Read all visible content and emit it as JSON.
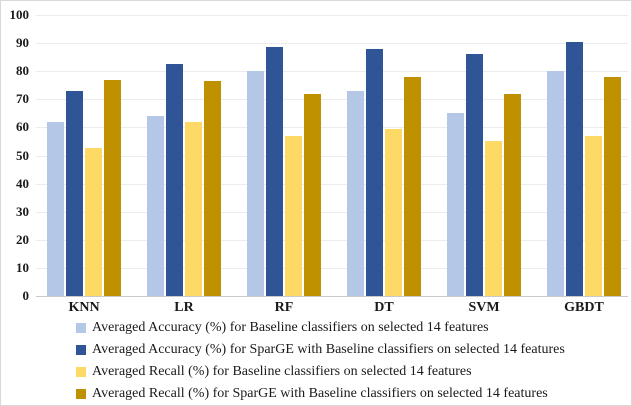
{
  "figure": {
    "background": "#ffffff",
    "border_color": "#d9d9d9",
    "gridline_color": "#ececec",
    "axis_line_color": "#c9c9c9",
    "tick_label_color": "#1a1a1a"
  },
  "chart_data": {
    "type": "bar",
    "title": "",
    "xlabel": "",
    "ylabel": "",
    "ylim": [
      0,
      100
    ],
    "yticks": [
      0,
      10,
      20,
      30,
      40,
      50,
      60,
      70,
      80,
      90,
      100
    ],
    "grid": true,
    "legend_position": "bottom-left",
    "categories": [
      "KNN",
      "LR",
      "RF",
      "DT",
      "SVM",
      "GBDT"
    ],
    "series": [
      {
        "name": "Averaged Accuracy (%) for Baseline classifiers on selected 14 features",
        "color": "#b4c7e7",
        "values": [
          62,
          64,
          80,
          73,
          65,
          80
        ]
      },
      {
        "name": "Averaged Accuracy (%) for SparGE with Baseline classifiers on selected 14 features",
        "color": "#2f5597",
        "values": [
          73,
          82.5,
          88.5,
          88,
          86,
          90.5
        ]
      },
      {
        "name": "Averaged Recall (%) for Baseline classifiers on selected 14 features",
        "color": "#ffd966",
        "values": [
          52.5,
          62,
          57,
          59.5,
          55,
          57
        ]
      },
      {
        "name": "Averaged Recall (%) for SparGE with Baseline classifiers on selected 14 features",
        "color": "#bf9000",
        "values": [
          77,
          76.5,
          72,
          78,
          72,
          78
        ]
      }
    ]
  }
}
